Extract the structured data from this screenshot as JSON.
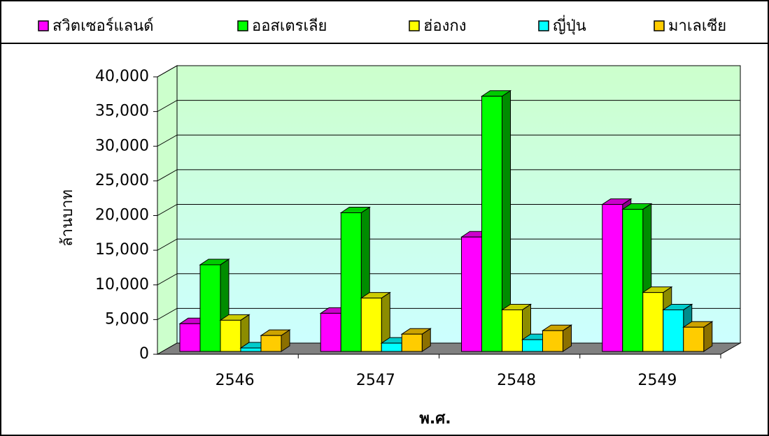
{
  "chart_data": {
    "type": "bar3d",
    "y_label": "ล้านบาท",
    "x_label": "พ.ศ.",
    "categories": [
      "2546",
      "2547",
      "2548",
      "2549"
    ],
    "series": [
      {
        "name": "สวิตเซอร์แลนด์",
        "color": "#ff00ff",
        "values": [
          4000,
          5500,
          16500,
          21200
        ]
      },
      {
        "name": "ออสเตรเลีย",
        "color": "#00ff00",
        "values": [
          12500,
          20000,
          36800,
          20500
        ]
      },
      {
        "name": "ฮ่องกง",
        "color": "#ffff00",
        "values": [
          4500,
          7700,
          6000,
          8500
        ]
      },
      {
        "name": "ญี่ปุ่น",
        "color": "#00ffff",
        "values": [
          500,
          1200,
          1700,
          6000
        ]
      },
      {
        "name": "มาเลเซีย",
        "color": "#ffcc00",
        "values": [
          2300,
          2500,
          3000,
          3500
        ]
      }
    ],
    "ylim": [
      0,
      40000
    ],
    "yticks": [
      0,
      {
        "value": 5000,
        "label": "5,000"
      },
      {
        "value": 10000,
        "label": "10,000"
      },
      {
        "value": 15000,
        "label": "15,000"
      },
      {
        "value": 20000,
        "label": "20,000"
      },
      {
        "value": 25000,
        "label": "25,000"
      },
      {
        "value": 30000,
        "label": "30,000"
      },
      {
        "value": 35000,
        "label": "35,000"
      },
      {
        "value": 40000,
        "label": "40,000"
      }
    ],
    "grid": true,
    "legend": "top"
  }
}
